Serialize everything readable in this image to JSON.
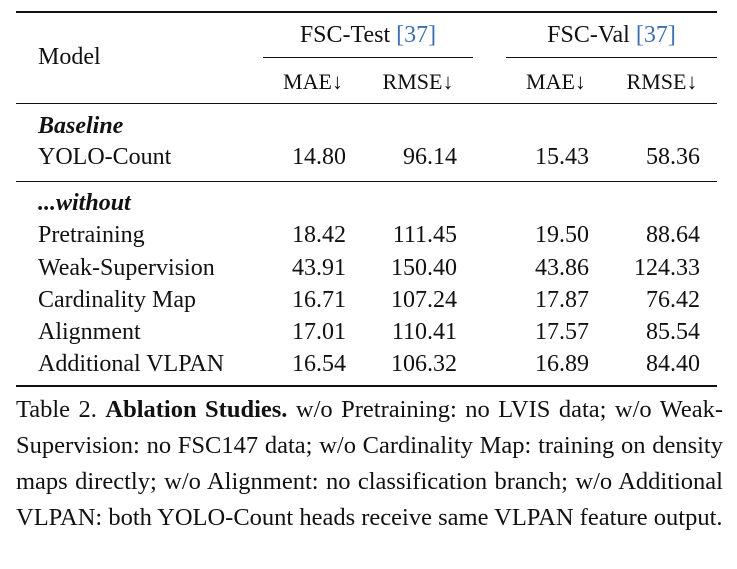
{
  "table": {
    "model_header": "Model",
    "groups": [
      {
        "label": "FSC-Test",
        "ref": "[37]"
      },
      {
        "label": "FSC-Val",
        "ref": "[37]"
      }
    ],
    "metrics": [
      "MAE↓",
      "RMSE↓",
      "MAE↓",
      "RMSE↓"
    ],
    "baseline_label": "Baseline",
    "baseline_row": {
      "model": "YOLO-Count",
      "values": [
        "14.80",
        "96.14",
        "15.43",
        "58.36"
      ]
    },
    "ablation_label": "...without",
    "ablation_rows": [
      {
        "model": "Pretraining",
        "values": [
          "18.42",
          "111.45",
          "19.50",
          "88.64"
        ]
      },
      {
        "model": "Weak-Supervision",
        "values": [
          "43.91",
          "150.40",
          "43.86",
          "124.33"
        ]
      },
      {
        "model": "Cardinality Map",
        "values": [
          "16.71",
          "107.24",
          "17.87",
          "76.42"
        ]
      },
      {
        "model": "Alignment",
        "values": [
          "17.01",
          "110.41",
          "17.57",
          "85.54"
        ]
      },
      {
        "model": "Additional VLPAN",
        "values": [
          "16.54",
          "106.32",
          "16.89",
          "84.40"
        ]
      }
    ]
  },
  "caption": {
    "label": "Table 2.",
    "title": "Ablation Studies.",
    "text": "w/o Pretraining: no LVIS data; w/o Weak-Supervision: no FSC147 data; w/o Cardinality Map: training on density maps directly; w/o Alignment: no classification branch; w/o Additional VLPAN: both YOLO-Count heads receive same VLPAN feature output."
  }
}
